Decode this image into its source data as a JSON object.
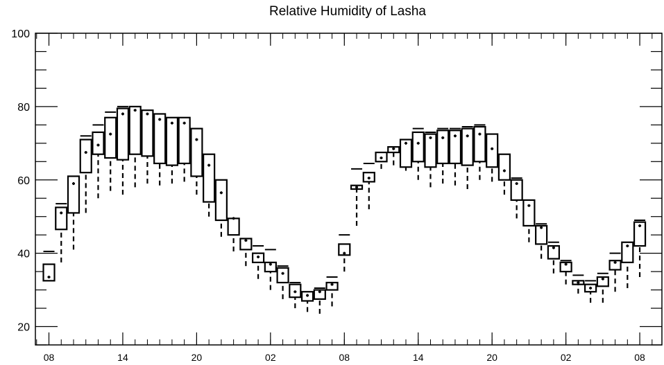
{
  "chart_data": {
    "type": "boxplot",
    "title": "Relative Humidity of Lasha",
    "xlabel": "",
    "ylabel": "",
    "ylim": [
      15,
      100
    ],
    "y_ticks": [
      20,
      40,
      60,
      80,
      100
    ],
    "x_tick_labels": [
      "08",
      "14",
      "20",
      "02",
      "08",
      "14",
      "20",
      "02",
      "08"
    ],
    "x_tick_hours": [
      0,
      6,
      12,
      18,
      24,
      30,
      36,
      42,
      48
    ],
    "x_range_hours": [
      -1.1,
      49.8
    ],
    "grid": false,
    "series": [
      {
        "hour": 0,
        "whisker_low": 32.5,
        "q1": 32.5,
        "median": 33.5,
        "q3": 37,
        "whisker_high": 40.5
      },
      {
        "hour": 1,
        "whisker_low": 37.5,
        "q1": 46.5,
        "median": 51,
        "q3": 52.5,
        "whisker_high": 53.5
      },
      {
        "hour": 2,
        "whisker_low": 41,
        "q1": 51,
        "median": 59,
        "q3": 61,
        "whisker_high": 61
      },
      {
        "hour": 3,
        "whisker_low": 51,
        "q1": 62,
        "median": 67.5,
        "q3": 71,
        "whisker_high": 72
      },
      {
        "hour": 4,
        "whisker_low": 55,
        "q1": 67,
        "median": 69.5,
        "q3": 73,
        "whisker_high": 75
      },
      {
        "hour": 5,
        "whisker_low": 57,
        "q1": 66,
        "median": 72.5,
        "q3": 77,
        "whisker_high": 78.5
      },
      {
        "hour": 6,
        "whisker_low": 56,
        "q1": 65.5,
        "median": 78,
        "q3": 79.5,
        "whisker_high": 80
      },
      {
        "hour": 7,
        "whisker_low": 58,
        "q1": 67,
        "median": 79,
        "q3": 80,
        "whisker_high": 80
      },
      {
        "hour": 8,
        "whisker_low": 59,
        "q1": 66.5,
        "median": 78,
        "q3": 79,
        "whisker_high": 79
      },
      {
        "hour": 9,
        "whisker_low": 58.5,
        "q1": 64.5,
        "median": 76.5,
        "q3": 78,
        "whisker_high": 78
      },
      {
        "hour": 10,
        "whisker_low": 59,
        "q1": 64,
        "median": 75.5,
        "q3": 77,
        "whisker_high": 77
      },
      {
        "hour": 11,
        "whisker_low": 59.5,
        "q1": 64.5,
        "median": 75.5,
        "q3": 77,
        "whisker_high": 77
      },
      {
        "hour": 12,
        "whisker_low": 56,
        "q1": 61,
        "median": 71,
        "q3": 74,
        "whisker_high": 74
      },
      {
        "hour": 13,
        "whisker_low": 50,
        "q1": 54,
        "median": 64,
        "q3": 67,
        "whisker_high": 67
      },
      {
        "hour": 14,
        "whisker_low": 44.5,
        "q1": 49,
        "median": 56.5,
        "q3": 60,
        "whisker_high": 60
      },
      {
        "hour": 15,
        "whisker_low": 40.5,
        "q1": 45,
        "median": 49.5,
        "q3": 49.5,
        "whisker_high": 49.5
      },
      {
        "hour": 16,
        "whisker_low": 36.5,
        "q1": 41,
        "median": 43.5,
        "q3": 44,
        "whisker_high": 44
      },
      {
        "hour": 17,
        "whisker_low": 33,
        "q1": 37.5,
        "median": 39,
        "q3": 40,
        "whisker_high": 42
      },
      {
        "hour": 18,
        "whisker_low": 30,
        "q1": 35,
        "median": 37,
        "q3": 37.5,
        "whisker_high": 41
      },
      {
        "hour": 19,
        "whisker_low": 27.5,
        "q1": 32,
        "median": 34.5,
        "q3": 36,
        "whisker_high": 36.5
      },
      {
        "hour": 20,
        "whisker_low": 25,
        "q1": 28,
        "median": 29.5,
        "q3": 31.5,
        "whisker_high": 32
      },
      {
        "hour": 21,
        "whisker_low": 24,
        "q1": 27,
        "median": 28.5,
        "q3": 29.5,
        "whisker_high": 29.5
      },
      {
        "hour": 22,
        "whisker_low": 23.5,
        "q1": 27.5,
        "median": 29.5,
        "q3": 30,
        "whisker_high": 30.5
      },
      {
        "hour": 23,
        "whisker_low": 25.5,
        "q1": 30,
        "median": 31.5,
        "q3": 32,
        "whisker_high": 33.5
      },
      {
        "hour": 24,
        "whisker_low": 35,
        "q1": 39.5,
        "median": 40,
        "q3": 42.5,
        "whisker_high": 45
      },
      {
        "hour": 25,
        "whisker_low": 47.5,
        "q1": 57.5,
        "median": 58,
        "q3": 58.5,
        "whisker_high": 63
      },
      {
        "hour": 26,
        "whisker_low": 52,
        "q1": 59.5,
        "median": 60.5,
        "q3": 62,
        "whisker_high": 64.5
      },
      {
        "hour": 27,
        "whisker_low": 63,
        "q1": 65,
        "median": 66,
        "q3": 67.5,
        "whisker_high": 67.5
      },
      {
        "hour": 28,
        "whisker_low": 64,
        "q1": 67.5,
        "median": 68.5,
        "q3": 69,
        "whisker_high": 69
      },
      {
        "hour": 29,
        "whisker_low": 62.5,
        "q1": 63.5,
        "median": 70,
        "q3": 71,
        "whisker_high": 71
      },
      {
        "hour": 30,
        "whisker_low": 60,
        "q1": 65,
        "median": 70,
        "q3": 73,
        "whisker_high": 74
      },
      {
        "hour": 31,
        "whisker_low": 58,
        "q1": 63.5,
        "median": 71.5,
        "q3": 72.5,
        "whisker_high": 73
      },
      {
        "hour": 32,
        "whisker_low": 59,
        "q1": 64.5,
        "median": 71.5,
        "q3": 73.5,
        "whisker_high": 74
      },
      {
        "hour": 33,
        "whisker_low": 58.5,
        "q1": 64.5,
        "median": 72,
        "q3": 73.5,
        "whisker_high": 74
      },
      {
        "hour": 34,
        "whisker_low": 57.5,
        "q1": 64,
        "median": 72,
        "q3": 74,
        "whisker_high": 74.5
      },
      {
        "hour": 35,
        "whisker_low": 60,
        "q1": 65,
        "median": 72.5,
        "q3": 74.5,
        "whisker_high": 75
      },
      {
        "hour": 36,
        "whisker_low": 59.5,
        "q1": 63.5,
        "median": 68.5,
        "q3": 72.5,
        "whisker_high": 72.5
      },
      {
        "hour": 37,
        "whisker_low": 56,
        "q1": 60,
        "median": 62.5,
        "q3": 67,
        "whisker_high": 67
      },
      {
        "hour": 38,
        "whisker_low": 49.5,
        "q1": 54.5,
        "median": 59,
        "q3": 60,
        "whisker_high": 60.5
      },
      {
        "hour": 39,
        "whisker_low": 43,
        "q1": 47.5,
        "median": 53,
        "q3": 54.5,
        "whisker_high": 54.5
      },
      {
        "hour": 40,
        "whisker_low": 38.5,
        "q1": 42.5,
        "median": 47,
        "q3": 47.5,
        "whisker_high": 48
      },
      {
        "hour": 41,
        "whisker_low": 34.5,
        "q1": 38.5,
        "median": 41.5,
        "q3": 42,
        "whisker_high": 43
      },
      {
        "hour": 42,
        "whisker_low": 31.5,
        "q1": 35,
        "median": 37,
        "q3": 37.5,
        "whisker_high": 38
      },
      {
        "hour": 43,
        "whisker_low": 29,
        "q1": 31.5,
        "median": 32,
        "q3": 32.5,
        "whisker_high": 34
      },
      {
        "hour": 44,
        "whisker_low": 26.5,
        "q1": 29.5,
        "median": 30.5,
        "q3": 31.5,
        "whisker_high": 32.5
      },
      {
        "hour": 45,
        "whisker_low": 26.5,
        "q1": 31,
        "median": 33,
        "q3": 33.5,
        "whisker_high": 34.5
      },
      {
        "hour": 46,
        "whisker_low": 29.5,
        "q1": 35.5,
        "median": 37.5,
        "q3": 38,
        "whisker_high": 40
      },
      {
        "hour": 47,
        "whisker_low": 30.5,
        "q1": 37.5,
        "median": 42,
        "q3": 43,
        "whisker_high": 43
      },
      {
        "hour": 48,
        "whisker_low": 33.5,
        "q1": 42,
        "median": 47.5,
        "q3": 48.5,
        "whisker_high": 49
      }
    ]
  }
}
